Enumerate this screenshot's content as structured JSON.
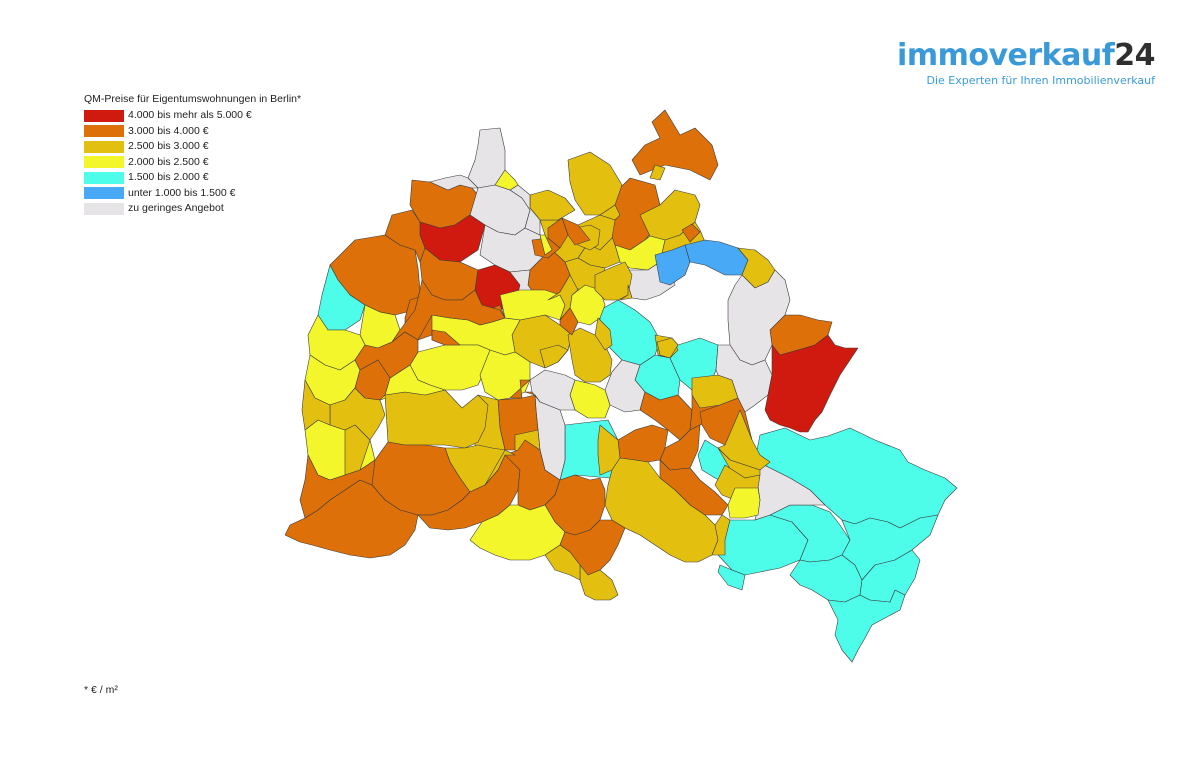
{
  "brand": {
    "name_text": "immoverkauf",
    "name_number": "24",
    "tagline": "Die Experten für Ihren Immobilienverkauf"
  },
  "legend": {
    "title": "QM-Preise für Eigentumswohnungen in Berlin*",
    "items": [
      {
        "label": "4.000 bis mehr als 5.000 €",
        "color": "#d01a10"
      },
      {
        "label": "3.000 bis 4.000 €",
        "color": "#dd7008"
      },
      {
        "label": "2.500 bis 3.000 €",
        "color": "#e3c010"
      },
      {
        "label": "2.000 bis 2.500 €",
        "color": "#f2f62a"
      },
      {
        "label": "1.500 bis 2.000 €",
        "color": "#4dfce9"
      },
      {
        "label": "unter 1.000 bis 1.500 €",
        "color": "#48a9f6"
      },
      {
        "label": "zu geringes Angebot",
        "color": "#e7e4e7"
      }
    ]
  },
  "footnote": "* € / m²",
  "map": {
    "name": "Berlin",
    "districts": [
      {
        "category": 4
      },
      {
        "category": 4
      },
      {
        "category": 4
      },
      {
        "category": 4
      },
      {
        "category": 4
      },
      {
        "category": 4
      },
      {
        "category": 6
      },
      {
        "category": 4
      },
      {
        "category": 4
      },
      {
        "category": 4
      },
      {
        "category": 4
      },
      {
        "category": 4
      },
      {
        "category": 4
      },
      {
        "category": 6
      },
      {
        "category": 3
      },
      {
        "category": 6
      },
      {
        "category": 6
      },
      {
        "category": 1
      },
      {
        "category": 1
      },
      {
        "category": 1
      },
      {
        "category": 1
      },
      {
        "category": 1
      },
      {
        "category": 1
      },
      {
        "category": 1
      },
      {
        "category": 1
      },
      {
        "category": 2
      },
      {
        "category": 2
      },
      {
        "category": 3
      },
      {
        "category": 6
      },
      {
        "category": 2
      },
      {
        "category": 2
      },
      {
        "category": 2
      },
      {
        "category": 2
      },
      {
        "category": 2
      },
      {
        "category": 6
      },
      {
        "category": 1
      },
      {
        "category": 6
      },
      {
        "category": 0
      },
      {
        "category": 6
      },
      {
        "category": 1
      },
      {
        "category": 1
      },
      {
        "category": 0
      },
      {
        "category": 6
      },
      {
        "category": 1
      },
      {
        "category": 4
      },
      {
        "category": 3
      },
      {
        "category": 3
      },
      {
        "category": 3
      },
      {
        "category": 3
      },
      {
        "category": 3
      },
      {
        "category": 2
      },
      {
        "category": 2
      },
      {
        "category": 2
      },
      {
        "category": 3
      },
      {
        "category": 1
      },
      {
        "category": 2
      },
      {
        "category": 2
      },
      {
        "category": 2
      },
      {
        "category": 2
      },
      {
        "category": 2
      },
      {
        "category": 2
      },
      {
        "category": 2
      },
      {
        "category": 2
      },
      {
        "category": 2
      },
      {
        "category": 1
      },
      {
        "category": 3
      },
      {
        "category": 5
      },
      {
        "category": 5
      },
      {
        "category": 2
      },
      {
        "category": 2
      },
      {
        "category": 2
      },
      {
        "category": 2
      },
      {
        "category": 2
      },
      {
        "category": 2
      },
      {
        "category": 4
      },
      {
        "category": 2
      },
      {
        "category": 2
      },
      {
        "category": 2
      },
      {
        "category": 1
      },
      {
        "category": 6
      },
      {
        "category": 6
      },
      {
        "category": 0
      },
      {
        "category": 3
      },
      {
        "category": 3
      },
      {
        "category": 3
      },
      {
        "category": 3
      },
      {
        "category": 3
      },
      {
        "category": 1
      },
      {
        "category": 1
      },
      {
        "category": 1
      },
      {
        "category": 1
      },
      {
        "category": 1
      },
      {
        "category": 1
      },
      {
        "category": 1
      },
      {
        "category": 3
      },
      {
        "category": 1
      },
      {
        "category": 2
      },
      {
        "category": 2
      },
      {
        "category": 2
      },
      {
        "category": 2
      },
      {
        "category": 1
      },
      {
        "category": 1
      },
      {
        "category": 1
      },
      {
        "category": 1
      },
      {
        "category": 1
      },
      {
        "category": 1
      },
      {
        "category": 1
      },
      {
        "category": 1
      },
      {
        "category": 2
      },
      {
        "category": 1
      },
      {
        "category": 6
      },
      {
        "category": 6
      },
      {
        "category": 3
      },
      {
        "category": 3
      },
      {
        "category": 2
      },
      {
        "category": 1
      },
      {
        "category": 1
      },
      {
        "category": 2
      },
      {
        "category": 2
      },
      {
        "category": 2
      },
      {
        "category": 2
      },
      {
        "category": 1
      }
    ]
  }
}
